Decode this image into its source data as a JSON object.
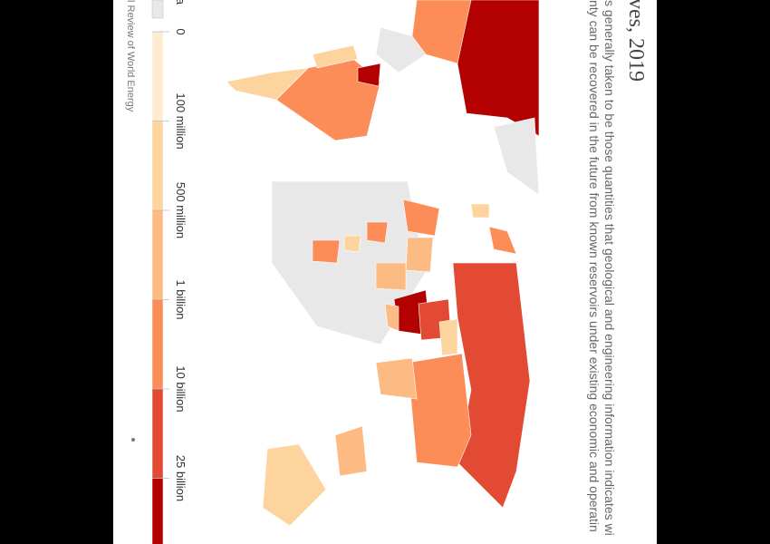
{
  "header": {
    "title": "ves, 2019",
    "subtitle": [
      "s generally taken to be those quantities that geological and engineering information indicates wi",
      "nty can be recovered in the future from known reservoirs under existing economic and operatin"
    ]
  },
  "legend": {
    "no_data": "ata",
    "labels": [
      "0",
      "100 million",
      "500 million",
      "1 billion",
      "10 billion",
      "25 billion"
    ]
  },
  "footer": {
    "source": "l Review of World Energy"
  }
}
